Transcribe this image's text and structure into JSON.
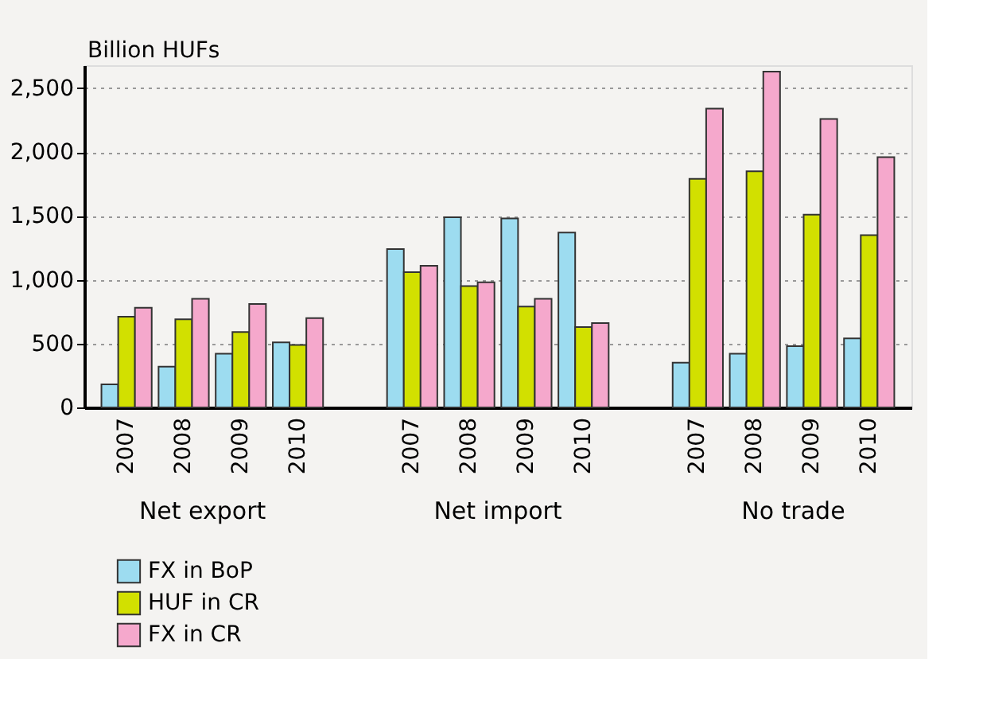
{
  "chart_data": {
    "type": "bar",
    "ylabel": "Billion HUFs",
    "categories": [
      "2007",
      "2008",
      "2009",
      "2010",
      null,
      "2007",
      "2008",
      "2009",
      "2010",
      null,
      "2007",
      "2008",
      "2009",
      "2010"
    ],
    "annotations": [
      "Net export",
      "Net import",
      "No trade"
    ],
    "series": [
      {
        "name": "FX in BoP",
        "color": "#9ddcf0",
        "values": [
          180,
          320,
          420,
          510,
          null,
          1240,
          1490,
          1480,
          1370,
          null,
          350,
          420,
          480,
          540
        ]
      },
      {
        "name": "HUF in CR",
        "color": "#d2e000",
        "values": [
          710,
          690,
          590,
          490,
          null,
          1060,
          950,
          790,
          630,
          null,
          1790,
          1850,
          1510,
          1350
        ]
      },
      {
        "name": "FX in CR",
        "color": "#f5a8cc",
        "values": [
          780,
          850,
          810,
          700,
          null,
          1110,
          980,
          850,
          660,
          null,
          2340,
          2630,
          2260,
          1960
        ]
      }
    ],
    "ylim": [
      0,
      2680
    ],
    "yticks": [
      0,
      500,
      {
        "value": 1000,
        "label": "1,000"
      },
      {
        "value": 1500,
        "label": "1,500"
      },
      {
        "value": 2000,
        "label": "2,000"
      },
      {
        "value": 2500,
        "label": "2,500"
      }
    ],
    "grid": "y",
    "legend": "bottom left"
  }
}
